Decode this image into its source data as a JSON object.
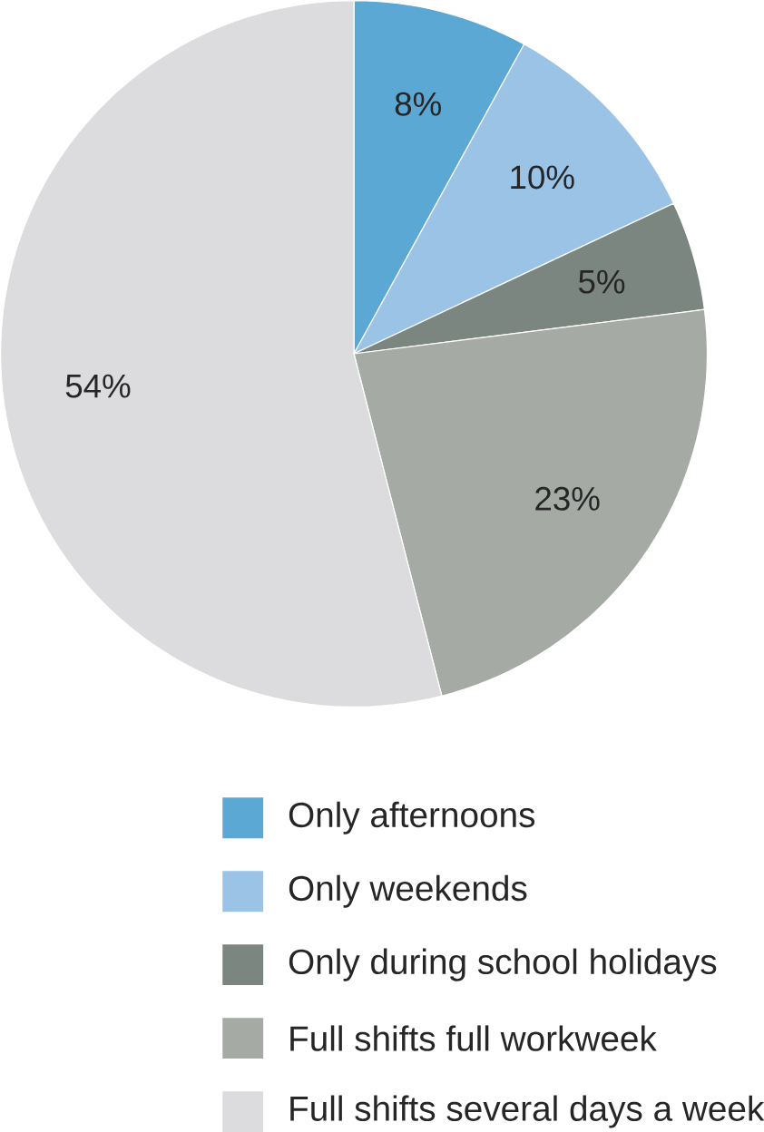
{
  "chart_data": {
    "type": "pie",
    "categories": [
      "Only afternoons",
      "Only weekends",
      "Only during school holidays",
      "Full shifts full workweek",
      "Full shifts several days a week"
    ],
    "values": [
      8,
      10,
      5,
      23,
      54
    ],
    "value_labels": [
      "8%",
      "10%",
      "5%",
      "23%",
      "54%"
    ],
    "colors": [
      "#5ba8d4",
      "#9ac3e6",
      "#7b8680",
      "#a5aaa5",
      "#dcdcdf"
    ],
    "legend": "bottom"
  }
}
